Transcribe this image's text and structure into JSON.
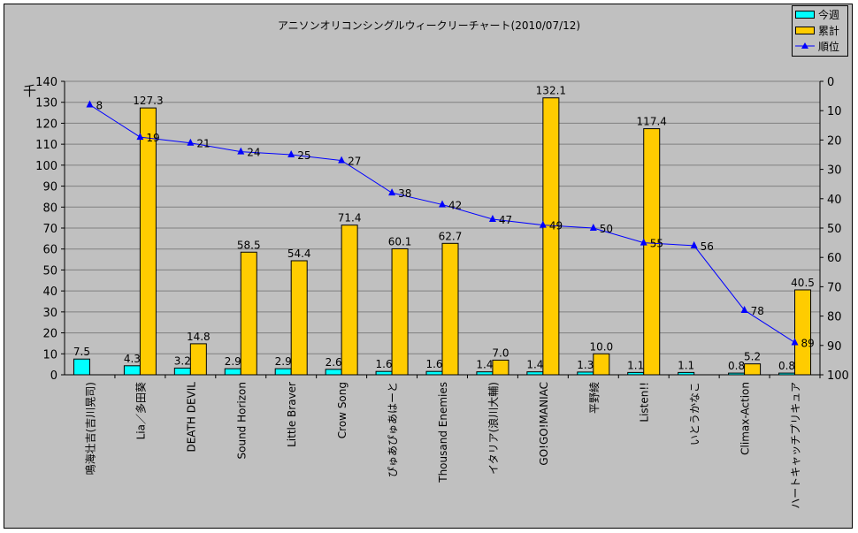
{
  "chart_data": {
    "type": "bar",
    "title": "アニソンオリコンシングルウィークリーチャート(2010/07/12)",
    "y_unit_label": "千",
    "categories": [
      "鳴海壮吉(吉川晃司)",
      "Lia／多田葵",
      "DEATH DEVIL",
      "Sound Horizon",
      "Little Braver",
      "Crow Song",
      "ぴゅあぴゅあはーと",
      "Thousand Enemies",
      "イタリア(浪川大輔)",
      "GO!GO!MANIAC",
      "平野綾",
      "Listen!!",
      "いとうかなこ",
      "Climax-Action",
      "ハートキャッチプリキュア"
    ],
    "series": [
      {
        "name": "今週",
        "type": "bar",
        "axis": "left",
        "color": "#00ffff",
        "values": [
          7.5,
          4.3,
          3.2,
          2.9,
          2.9,
          2.6,
          1.6,
          1.6,
          1.4,
          1.4,
          1.3,
          1.1,
          1.1,
          0.8,
          0.8
        ]
      },
      {
        "name": "累計",
        "type": "bar",
        "axis": "left",
        "color": "#ffcc00",
        "values": [
          null,
          127.3,
          14.8,
          58.5,
          54.4,
          71.4,
          60.1,
          62.7,
          7.0,
          132.1,
          10.0,
          117.4,
          null,
          5.2,
          40.5
        ]
      },
      {
        "name": "順位",
        "type": "line",
        "axis": "right",
        "color": "#0000ff",
        "marker": "triangle",
        "values": [
          8,
          19,
          21,
          24,
          25,
          27,
          38,
          42,
          47,
          49,
          50,
          55,
          56,
          78,
          89
        ]
      }
    ],
    "ylim_left": [
      0,
      140
    ],
    "yticks_left": [
      0,
      10,
      20,
      30,
      40,
      50,
      60,
      70,
      80,
      90,
      100,
      110,
      120,
      130,
      140
    ],
    "ylim_right": [
      0,
      100
    ],
    "right_axis_inverted": true,
    "yticks_right": [
      0,
      10,
      20,
      30,
      40,
      50,
      60,
      70,
      80,
      90,
      100
    ],
    "grid": true,
    "legend_position": "top-right"
  }
}
